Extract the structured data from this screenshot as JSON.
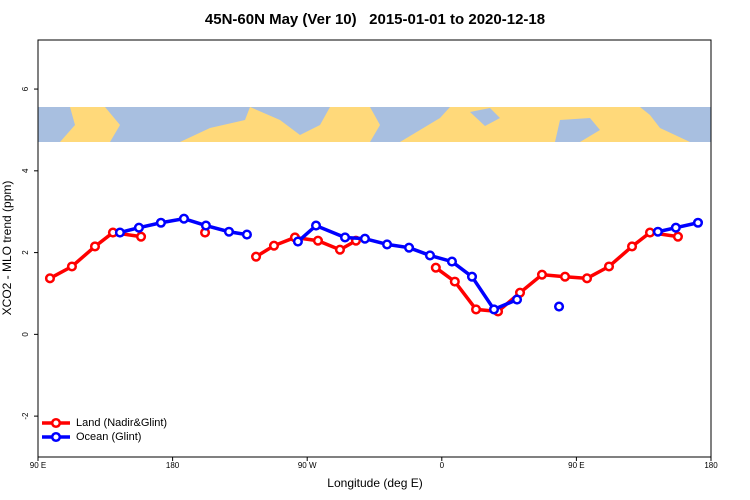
{
  "chart_data": {
    "type": "line",
    "title": "45N-60N May (Ver 10)   2015-01-01 to 2020-12-18",
    "x_label": "Longitude (deg E)",
    "y_label": "XCO2 - MLO trend (ppm)",
    "xlim": [
      90,
      540
    ],
    "xticks": [
      {
        "value": 90,
        "label": "90 E"
      },
      180,
      {
        "value": 270,
        "label": "90 W"
      },
      {
        "value": 360,
        "label": "0"
      },
      {
        "value": 450,
        "label": "90 E"
      },
      {
        "value": 540,
        "label": "180"
      }
    ],
    "ylim": [
      -3.0,
      7.2
    ],
    "yticks": [
      -2,
      0,
      2,
      4,
      6
    ],
    "legend": "bottom-left",
    "series": [
      {
        "name": "Land (Nadir&Glint)",
        "color": "#ff0000",
        "x": [
          98.0,
          112.7,
          128.1,
          140.1,
          158.9,
          null,
          201.7,
          null,
          235.8,
          247.8,
          261.8,
          277.2,
          291.9,
          302.6,
          null,
          356.0,
          368.7,
          382.9,
          397.6,
          412.3,
          427.0,
          442.4,
          457.1,
          471.8,
          487.2,
          499.2,
          517.9
        ],
        "values": [
          1.37,
          1.66,
          2.15,
          2.49,
          2.39,
          null,
          2.49,
          null,
          1.9,
          2.17,
          2.37,
          2.29,
          2.07,
          2.29,
          null,
          1.63,
          1.29,
          0.61,
          0.56,
          1.02,
          1.46,
          1.41,
          1.37,
          1.66,
          2.15,
          2.49,
          2.39
        ]
      },
      {
        "name": "Ocean (Glint)",
        "color": "#0000ff",
        "x": [
          144.8,
          157.5,
          172.2,
          187.6,
          202.3,
          217.7,
          229.7,
          null,
          263.8,
          275.9,
          295.3,
          308.6,
          323.4,
          338.1,
          352.1,
          366.8,
          380.2,
          394.9,
          410.3,
          null,
          438.4,
          null,
          504.5,
          516.5,
          531.3
        ],
        "values": [
          2.49,
          2.61,
          2.73,
          2.83,
          2.66,
          2.51,
          2.44,
          null,
          2.27,
          2.66,
          2.37,
          2.34,
          2.2,
          2.12,
          1.93,
          1.78,
          1.41,
          0.61,
          0.85,
          null,
          0.68,
          null,
          2.51,
          2.61,
          2.73
        ]
      }
    ]
  }
}
